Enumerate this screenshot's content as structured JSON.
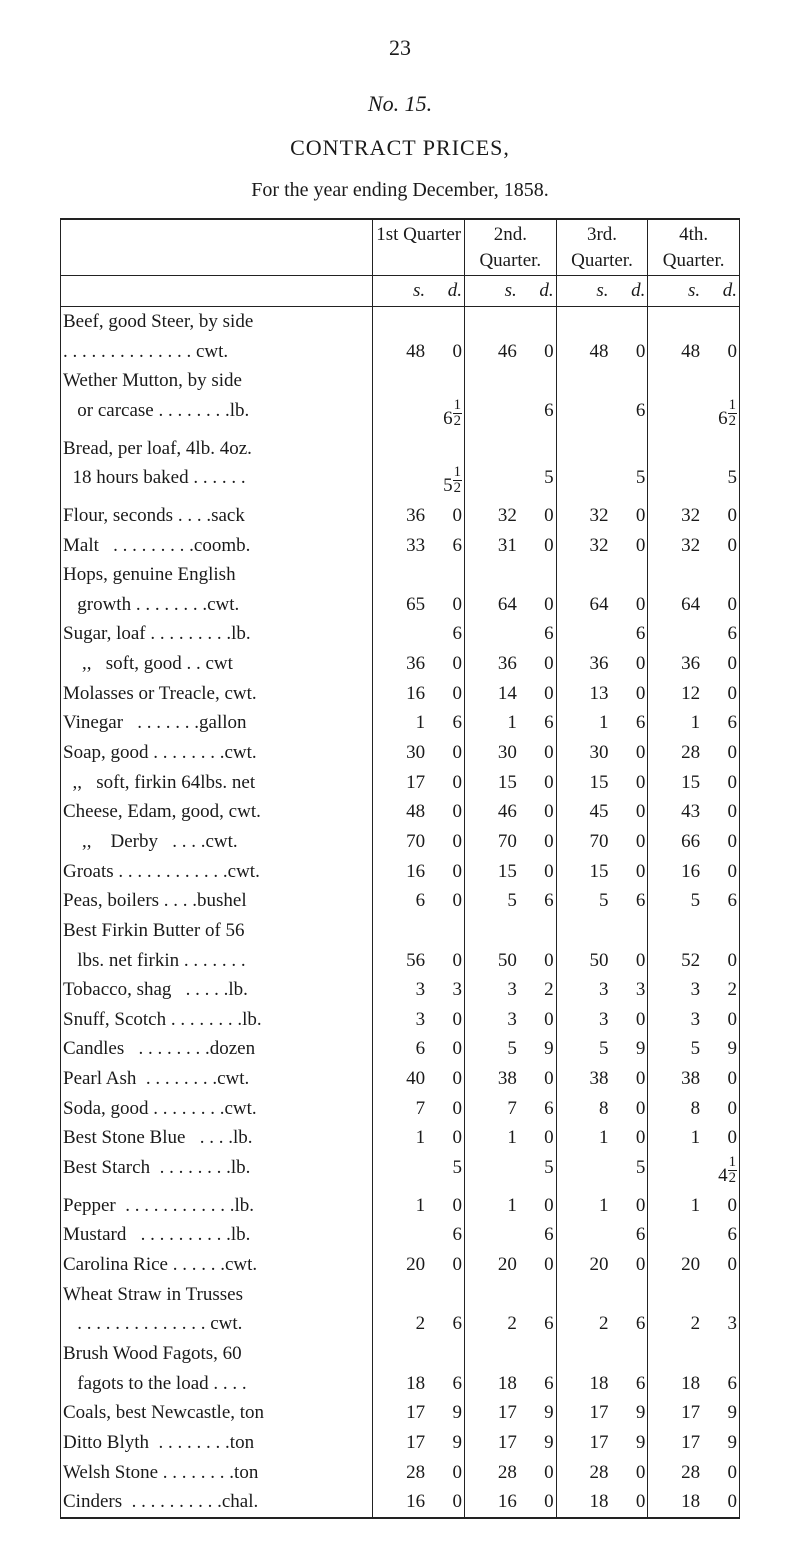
{
  "page_number": "23",
  "figure_no": "No. 15.",
  "title": "CONTRACT PRICES,",
  "subtitle": "For the year ending December, 1858.",
  "columns": {
    "q1": "1st Quarter",
    "q2": "2nd. Quarter.",
    "q3": "3rd. Quarter.",
    "q4": "4th. Quarter.",
    "s": "s.",
    "d": "d."
  },
  "rows": [
    {
      "item": "Beef, good Steer, by side",
      "q1s": "",
      "q1d": "",
      "q2s": "",
      "q2d": "",
      "q3s": "",
      "q3d": "",
      "q4s": "",
      "q4d": ""
    },
    {
      "item": ". . . . . . . . . . . . . . cwt.",
      "q1s": "48",
      "q1d": "0",
      "q2s": "46",
      "q2d": "0",
      "q3s": "48",
      "q3d": "0",
      "q4s": "48",
      "q4d": "0"
    },
    {
      "item": "Wether Mutton, by side",
      "q1s": "",
      "q1d": "",
      "q2s": "",
      "q2d": "",
      "q3s": "",
      "q3d": "",
      "q4s": "",
      "q4d": ""
    },
    {
      "item": "   or carcase . . . . . . . .lb.",
      "q1s": "",
      "q1d": "6½",
      "q2s": "",
      "q2d": "6",
      "q3s": "",
      "q3d": "6",
      "q4s": "",
      "q4d": "6½"
    },
    {
      "item": "Bread, per loaf, 4lb. 4oz.",
      "q1s": "",
      "q1d": "",
      "q2s": "",
      "q2d": "",
      "q3s": "",
      "q3d": "",
      "q4s": "",
      "q4d": ""
    },
    {
      "item": "  18 hours baked . . . . . .",
      "q1s": "",
      "q1d": "5½",
      "q2s": "",
      "q2d": "5",
      "q3s": "",
      "q3d": "5",
      "q4s": "",
      "q4d": "5"
    },
    {
      "item": "Flour, seconds . . . .sack",
      "q1s": "36",
      "q1d": "0",
      "q2s": "32",
      "q2d": "0",
      "q3s": "32",
      "q3d": "0",
      "q4s": "32",
      "q4d": "0"
    },
    {
      "item": "Malt   . . . . . . . . .coomb.",
      "q1s": "33",
      "q1d": "6",
      "q2s": "31",
      "q2d": "0",
      "q3s": "32",
      "q3d": "0",
      "q4s": "32",
      "q4d": "0"
    },
    {
      "item": "Hops, genuine English",
      "q1s": "",
      "q1d": "",
      "q2s": "",
      "q2d": "",
      "q3s": "",
      "q3d": "",
      "q4s": "",
      "q4d": ""
    },
    {
      "item": "   growth . . . . . . . .cwt.",
      "q1s": "65",
      "q1d": "0",
      "q2s": "64",
      "q2d": "0",
      "q3s": "64",
      "q3d": "0",
      "q4s": "64",
      "q4d": "0"
    },
    {
      "item": "Sugar, loaf . . . . . . . . .lb.",
      "q1s": "",
      "q1d": "6",
      "q2s": "",
      "q2d": "6",
      "q3s": "",
      "q3d": "6",
      "q4s": "",
      "q4d": "6"
    },
    {
      "item": "    ,,   soft, good . . cwt",
      "q1s": "36",
      "q1d": "0",
      "q2s": "36",
      "q2d": "0",
      "q3s": "36",
      "q3d": "0",
      "q4s": "36",
      "q4d": "0"
    },
    {
      "item": "Molasses or Treacle, cwt.",
      "q1s": "16",
      "q1d": "0",
      "q2s": "14",
      "q2d": "0",
      "q3s": "13",
      "q3d": "0",
      "q4s": "12",
      "q4d": "0"
    },
    {
      "item": "Vinegar   . . . . . . .gallon",
      "q1s": "1",
      "q1d": "6",
      "q2s": "1",
      "q2d": "6",
      "q3s": "1",
      "q3d": "6",
      "q4s": "1",
      "q4d": "6"
    },
    {
      "item": "Soap, good . . . . . . . .cwt.",
      "q1s": "30",
      "q1d": "0",
      "q2s": "30",
      "q2d": "0",
      "q3s": "30",
      "q3d": "0",
      "q4s": "28",
      "q4d": "0"
    },
    {
      "item": "  ,,   soft, firkin 64lbs. net",
      "q1s": "17",
      "q1d": "0",
      "q2s": "15",
      "q2d": "0",
      "q3s": "15",
      "q3d": "0",
      "q4s": "15",
      "q4d": "0"
    },
    {
      "item": "Cheese, Edam, good, cwt.",
      "q1s": "48",
      "q1d": "0",
      "q2s": "46",
      "q2d": "0",
      "q3s": "45",
      "q3d": "0",
      "q4s": "43",
      "q4d": "0"
    },
    {
      "item": "    ,,    Derby   . . . .cwt.",
      "q1s": "70",
      "q1d": "0",
      "q2s": "70",
      "q2d": "0",
      "q3s": "70",
      "q3d": "0",
      "q4s": "66",
      "q4d": "0"
    },
    {
      "item": "Groats . . . . . . . . . . . .cwt.",
      "q1s": "16",
      "q1d": "0",
      "q2s": "15",
      "q2d": "0",
      "q3s": "15",
      "q3d": "0",
      "q4s": "16",
      "q4d": "0"
    },
    {
      "item": "Peas, boilers . . . .bushel",
      "q1s": "6",
      "q1d": "0",
      "q2s": "5",
      "q2d": "6",
      "q3s": "5",
      "q3d": "6",
      "q4s": "5",
      "q4d": "6"
    },
    {
      "item": "Best Firkin Butter of 56",
      "q1s": "",
      "q1d": "",
      "q2s": "",
      "q2d": "",
      "q3s": "",
      "q3d": "",
      "q4s": "",
      "q4d": ""
    },
    {
      "item": "   lbs. net firkin . . . . . . .",
      "q1s": "56",
      "q1d": "0",
      "q2s": "50",
      "q2d": "0",
      "q3s": "50",
      "q3d": "0",
      "q4s": "52",
      "q4d": "0"
    },
    {
      "item": "Tobacco, shag   . . . . .lb.",
      "q1s": "3",
      "q1d": "3",
      "q2s": "3",
      "q2d": "2",
      "q3s": "3",
      "q3d": "3",
      "q4s": "3",
      "q4d": "2"
    },
    {
      "item": "Snuff, Scotch . . . . . . . .lb.",
      "q1s": "3",
      "q1d": "0",
      "q2s": "3",
      "q2d": "0",
      "q3s": "3",
      "q3d": "0",
      "q4s": "3",
      "q4d": "0"
    },
    {
      "item": "Candles   . . . . . . . .dozen",
      "q1s": "6",
      "q1d": "0",
      "q2s": "5",
      "q2d": "9",
      "q3s": "5",
      "q3d": "9",
      "q4s": "5",
      "q4d": "9"
    },
    {
      "item": "Pearl Ash  . . . . . . . .cwt.",
      "q1s": "40",
      "q1d": "0",
      "q2s": "38",
      "q2d": "0",
      "q3s": "38",
      "q3d": "0",
      "q4s": "38",
      "q4d": "0"
    },
    {
      "item": "Soda, good . . . . . . . .cwt.",
      "q1s": "7",
      "q1d": "0",
      "q2s": "7",
      "q2d": "6",
      "q3s": "8",
      "q3d": "0",
      "q4s": "8",
      "q4d": "0"
    },
    {
      "item": "Best Stone Blue   . . . .lb.",
      "q1s": "1",
      "q1d": "0",
      "q2s": "1",
      "q2d": "0",
      "q3s": "1",
      "q3d": "0",
      "q4s": "1",
      "q4d": "0"
    },
    {
      "item": "Best Starch  . . . . . . . .lb.",
      "q1s": "",
      "q1d": "5",
      "q2s": "",
      "q2d": "5",
      "q3s": "",
      "q3d": "5",
      "q4s": "",
      "q4d": "4½"
    },
    {
      "item": "Pepper  . . . . . . . . . . . .lb.",
      "q1s": "1",
      "q1d": "0",
      "q2s": "1",
      "q2d": "0",
      "q3s": "1",
      "q3d": "0",
      "q4s": "1",
      "q4d": "0"
    },
    {
      "item": "Mustard   . . . . . . . . . .lb.",
      "q1s": "",
      "q1d": "6",
      "q2s": "",
      "q2d": "6",
      "q3s": "",
      "q3d": "6",
      "q4s": "",
      "q4d": "6"
    },
    {
      "item": "Carolina Rice . . . . . .cwt.",
      "q1s": "20",
      "q1d": "0",
      "q2s": "20",
      "q2d": "0",
      "q3s": "20",
      "q3d": "0",
      "q4s": "20",
      "q4d": "0"
    },
    {
      "item": "Wheat Straw in Trusses",
      "q1s": "",
      "q1d": "",
      "q2s": "",
      "q2d": "",
      "q3s": "",
      "q3d": "",
      "q4s": "",
      "q4d": ""
    },
    {
      "item": "   . . . . . . . . . . . . . . cwt.",
      "q1s": "2",
      "q1d": "6",
      "q2s": "2",
      "q2d": "6",
      "q3s": "2",
      "q3d": "6",
      "q4s": "2",
      "q4d": "3"
    },
    {
      "item": "Brush Wood Fagots, 60",
      "q1s": "",
      "q1d": "",
      "q2s": "",
      "q2d": "",
      "q3s": "",
      "q3d": "",
      "q4s": "",
      "q4d": ""
    },
    {
      "item": "   fagots to the load . . . .",
      "q1s": "18",
      "q1d": "6",
      "q2s": "18",
      "q2d": "6",
      "q3s": "18",
      "q3d": "6",
      "q4s": "18",
      "q4d": "6"
    },
    {
      "item": "Coals, best Newcastle, ton",
      "q1s": "17",
      "q1d": "9",
      "q2s": "17",
      "q2d": "9",
      "q3s": "17",
      "q3d": "9",
      "q4s": "17",
      "q4d": "9"
    },
    {
      "item": "Ditto Blyth  . . . . . . . .ton",
      "q1s": "17",
      "q1d": "9",
      "q2s": "17",
      "q2d": "9",
      "q3s": "17",
      "q3d": "9",
      "q4s": "17",
      "q4d": "9"
    },
    {
      "item": "Welsh Stone . . . . . . . .ton",
      "q1s": "28",
      "q1d": "0",
      "q2s": "28",
      "q2d": "0",
      "q3s": "28",
      "q3d": "0",
      "q4s": "28",
      "q4d": "0"
    },
    {
      "item": "Cinders  . . . . . . . . . .chal.",
      "q1s": "16",
      "q1d": "0",
      "q2s": "16",
      "q2d": "0",
      "q3s": "18",
      "q3d": "0",
      "q4s": "18",
      "q4d": "0"
    }
  ]
}
